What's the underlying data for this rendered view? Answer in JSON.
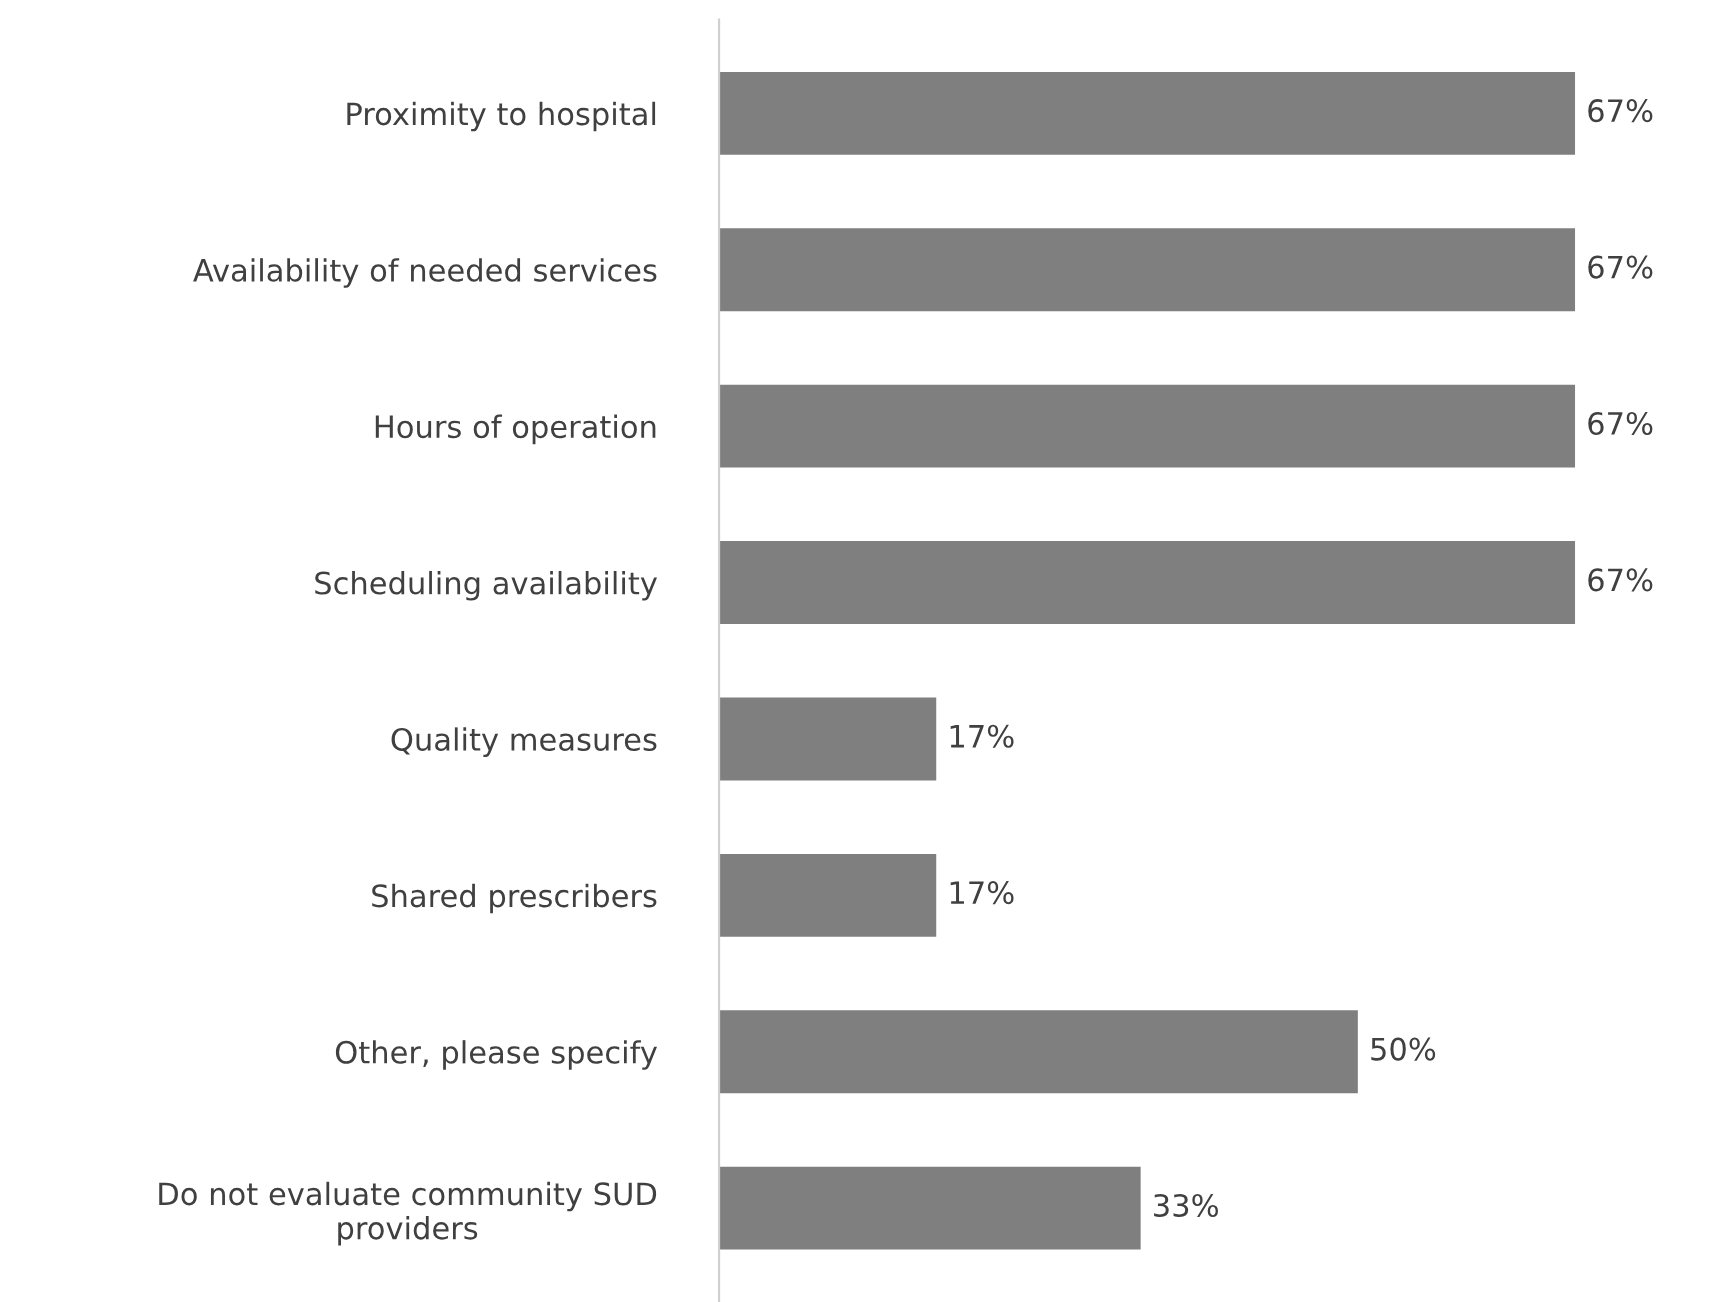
{
  "chart_data": {
    "type": "bar",
    "orientation": "horizontal",
    "categories": [
      "Proximity to hospital",
      "Availability of needed services",
      "Hours of operation",
      "Scheduling availability",
      "Quality measures",
      "Shared prescribers",
      "Other, please specify",
      "Do not evaluate community SUD\nproviders"
    ],
    "values": [
      67,
      67,
      67,
      67,
      17,
      17,
      50,
      33
    ],
    "value_labels": [
      "67%",
      "67%",
      "67%",
      "67%",
      "17%",
      "17%",
      "50%",
      "33%"
    ],
    "color": "#7f7f7f",
    "grid": false,
    "legend": false
  }
}
